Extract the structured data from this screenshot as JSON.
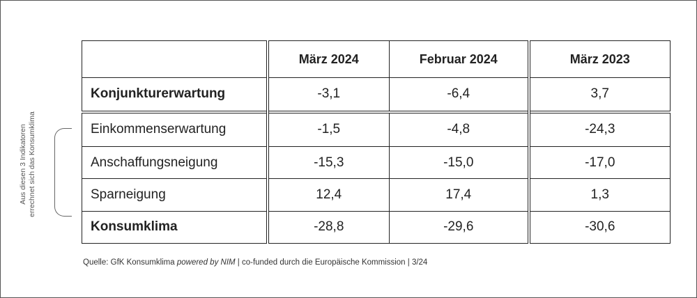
{
  "side_note": {
    "line1": "Aus diesen 3 Indikatoren",
    "line2": "errechnet sich das Konsumklima"
  },
  "table": {
    "headers": [
      "",
      "März 2024",
      "Februar 2024",
      "März 2023"
    ],
    "rows": [
      {
        "label": "Konjunkturerwartung",
        "values": [
          "-3,1",
          "-6,4",
          "3,7"
        ]
      },
      {
        "label": "Einkommenserwartung",
        "values": [
          "-1,5",
          "-4,8",
          "-24,3"
        ]
      },
      {
        "label": "Anschaffungsneigung",
        "values": [
          "-15,3",
          "-15,0",
          "-17,0"
        ]
      },
      {
        "label": "Sparneigung",
        "values": [
          "12,4",
          "17,4",
          "1,3"
        ]
      },
      {
        "label": "Konsumklima",
        "values": [
          "-28,8",
          "-29,6",
          "-30,6"
        ]
      }
    ]
  },
  "source": {
    "prefix": "Quelle: GfK Konsumklima ",
    "italic": "powered by NIM",
    "suffix": " | co-funded durch die Europäische Kommission | 3/24"
  }
}
